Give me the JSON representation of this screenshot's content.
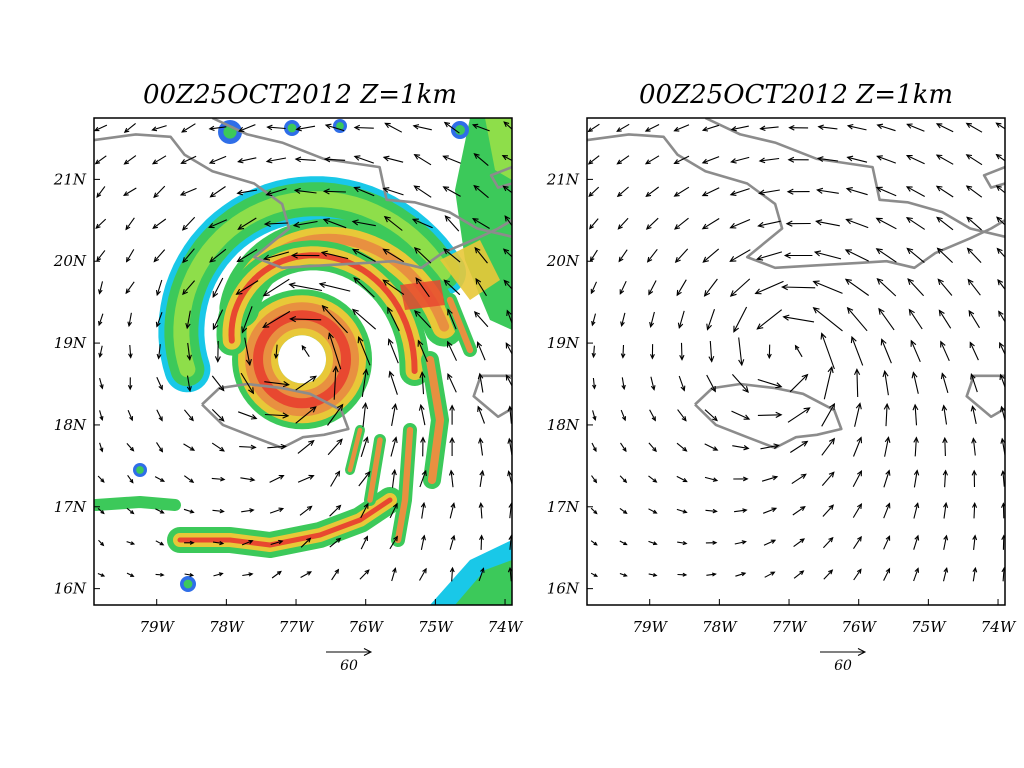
{
  "panels": [
    {
      "id": "left",
      "title": "00Z25OCT2012  Z=1km",
      "field_shading": true
    },
    {
      "id": "right",
      "title": "00Z25OCT2012  Z=1km",
      "field_shading": false
    }
  ],
  "axes": {
    "x_ticks": [
      "79W",
      "78W",
      "77W",
      "76W",
      "75W",
      "74W"
    ],
    "x_values": [
      -79,
      -78,
      -77,
      -76,
      -75,
      -74
    ],
    "y_ticks": [
      "21N",
      "20N",
      "19N",
      "18N",
      "17N",
      "16N"
    ],
    "y_values": [
      21,
      20,
      19,
      18,
      17,
      16
    ],
    "lon_range": [
      -79.9,
      -73.9
    ],
    "lat_range": [
      15.8,
      21.75
    ]
  },
  "reference_vector": {
    "label": "60",
    "value": 60
  },
  "storm_center": {
    "lon": -77.0,
    "lat": 18.9
  },
  "colors": {
    "coast": "#8c8c8c",
    "frame": "#000000",
    "shade_blue": "#2f6ee8",
    "shade_cyan": "#19c8e8",
    "shade_green": "#3cc95a",
    "shade_lightgreen": "#8ede4a",
    "shade_yellow": "#e8c838",
    "shade_orange": "#e89040",
    "shade_red": "#e84830"
  }
}
